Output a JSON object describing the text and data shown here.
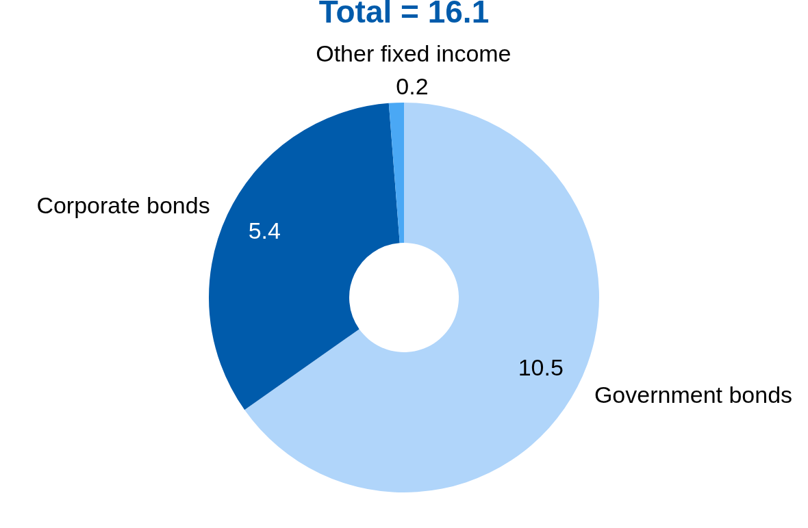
{
  "chart_data": {
    "type": "donut",
    "title": "Total = 16.1",
    "categories": [
      "Government bonds",
      "Corporate bonds",
      "Other fixed income"
    ],
    "values": [
      10.5,
      5.4,
      0.2
    ],
    "colors": [
      "#b0d5fa",
      "#005bab",
      "#4aa8f5"
    ],
    "data_labels": true,
    "legend": false
  }
}
